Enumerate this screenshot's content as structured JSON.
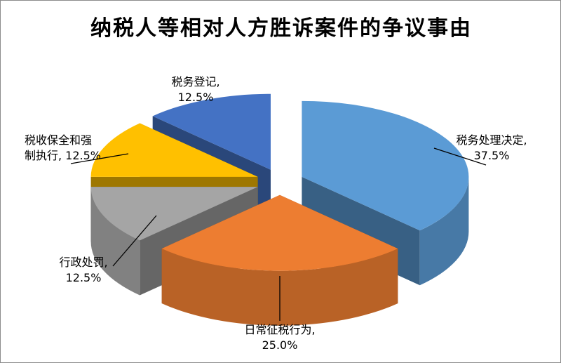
{
  "chart_data": {
    "type": "pie",
    "title": "纳税人等相对人方胜诉案件的争议事由",
    "slices": [
      {
        "name": "税务处理决定",
        "value": 37.5,
        "value_label": "37.5%",
        "color": "#5b9bd5"
      },
      {
        "name": "日常征税行为",
        "value": 25.0,
        "value_label": "25.0%",
        "color": "#ed7d31"
      },
      {
        "name": "行政处罚",
        "value": 12.5,
        "value_label": "12.5%",
        "color": "#a5a5a5"
      },
      {
        "name": "税收保全和强制执行",
        "value": 12.5,
        "value_label": "12.5%",
        "color": "#ffc000"
      },
      {
        "name": "税务登记",
        "value": 12.5,
        "value_label": "12.5%",
        "color": "#4472c4"
      }
    ],
    "labels": {
      "s0": {
        "line1": "税务处理决定,",
        "line2": "37.5%"
      },
      "s1": {
        "line1": "日常征税行为,",
        "line2": "25.0%"
      },
      "s2": {
        "line1": "行政处罚,",
        "line2": "12.5%"
      },
      "s3": {
        "line1": "税收保全和强",
        "line2": "制执行, 12.5%"
      },
      "s4": {
        "line1": "税务登记,",
        "line2": "12.5%"
      }
    },
    "style": "3d-exploded",
    "legend": "none"
  }
}
